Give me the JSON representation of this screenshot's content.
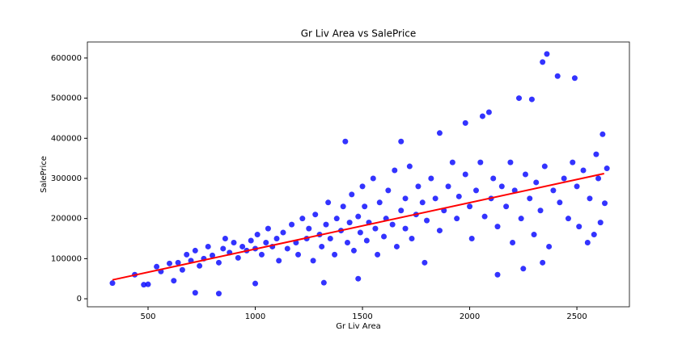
{
  "chart_data": {
    "type": "scatter",
    "title": "Gr Liv Area vs SalePrice",
    "xlabel": "Gr Liv Area",
    "ylabel": "SalePrice",
    "color": "#0000ff",
    "x": [
      334,
      438,
      480,
      500,
      540,
      560,
      600,
      620,
      640,
      660,
      680,
      700,
      720,
      720,
      740,
      760,
      780,
      800,
      830,
      830,
      850,
      860,
      880,
      900,
      920,
      940,
      960,
      980,
      1000,
      1000,
      1010,
      1030,
      1050,
      1060,
      1080,
      1100,
      1110,
      1130,
      1150,
      1170,
      1190,
      1200,
      1220,
      1240,
      1250,
      1270,
      1280,
      1300,
      1310,
      1320,
      1330,
      1340,
      1350,
      1370,
      1380,
      1400,
      1410,
      1420,
      1430,
      1440,
      1450,
      1460,
      1480,
      1480,
      1490,
      1500,
      1510,
      1520,
      1530,
      1550,
      1560,
      1570,
      1580,
      1600,
      1610,
      1620,
      1640,
      1650,
      1660,
      1680,
      1680,
      1700,
      1700,
      1720,
      1730,
      1750,
      1760,
      1780,
      1790,
      1800,
      1820,
      1840,
      1860,
      1860,
      1880,
      1900,
      1920,
      1940,
      1950,
      1980,
      1980,
      2000,
      2010,
      2030,
      2050,
      2060,
      2070,
      2090,
      2100,
      2110,
      2130,
      2130,
      2150,
      2170,
      2190,
      2200,
      2210,
      2230,
      2240,
      2250,
      2260,
      2280,
      2290,
      2300,
      2310,
      2330,
      2340,
      2340,
      2350,
      2360,
      2370,
      2390,
      2410,
      2420,
      2440,
      2460,
      2480,
      2490,
      2500,
      2510,
      2530,
      2550,
      2560,
      2580,
      2590,
      2600,
      2610,
      2620,
      2630,
      2640
    ],
    "values": [
      39000,
      60000,
      35000,
      36000,
      80000,
      68000,
      88000,
      45000,
      90000,
      72000,
      110000,
      95000,
      15000,
      120000,
      82000,
      100000,
      130000,
      108000,
      13000,
      90000,
      125000,
      150000,
      115000,
      140000,
      102000,
      130000,
      120000,
      145000,
      38000,
      125000,
      160000,
      110000,
      140000,
      175000,
      130000,
      150000,
      95000,
      165000,
      125000,
      185000,
      140000,
      110000,
      200000,
      150000,
      175000,
      95000,
      210000,
      160000,
      130000,
      40000,
      185000,
      240000,
      150000,
      110000,
      200000,
      170000,
      230000,
      392000,
      140000,
      190000,
      260000,
      120000,
      50000,
      205000,
      165000,
      280000,
      230000,
      145000,
      190000,
      300000,
      175000,
      110000,
      240000,
      155000,
      200000,
      270000,
      185000,
      320000,
      130000,
      392000,
      220000,
      175000,
      250000,
      330000,
      150000,
      210000,
      280000,
      240000,
      90000,
      195000,
      300000,
      250000,
      413000,
      170000,
      220000,
      280000,
      340000,
      200000,
      255000,
      438000,
      310000,
      230000,
      150000,
      270000,
      340000,
      455000,
      205000,
      465000,
      250000,
      300000,
      60000,
      180000,
      280000,
      230000,
      340000,
      140000,
      270000,
      500000,
      200000,
      75000,
      310000,
      250000,
      497000,
      160000,
      290000,
      220000,
      90000,
      590000,
      330000,
      610000,
      130000,
      270000,
      555000,
      240000,
      300000,
      200000,
      340000,
      550000,
      280000,
      180000,
      320000,
      140000,
      250000,
      160000,
      360000,
      300000,
      190000,
      410000,
      238000,
      325000
    ],
    "fit": {
      "x": [
        334,
        2627
      ],
      "values": [
        47000,
        312000
      ],
      "color": "#ff0000"
    },
    "xlim": [
      217,
      2745
    ],
    "ylim": [
      -20000,
      640000
    ],
    "xticks": [
      500,
      1000,
      1500,
      2000,
      2500
    ],
    "yticks": [
      0,
      100000,
      200000,
      300000,
      400000,
      500000,
      600000
    ],
    "grid": false
  }
}
